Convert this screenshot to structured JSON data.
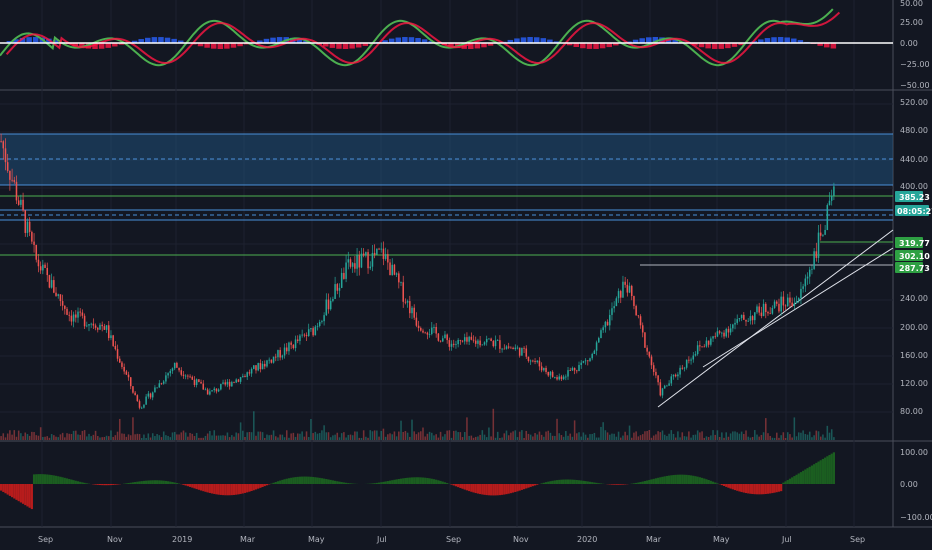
{
  "colors": {
    "background": "#131722",
    "grid": "#1e2230",
    "pane_border": "#4a4e5a",
    "up": "#26a69a",
    "down": "#ef5350",
    "zone_fill": "#1f4e79",
    "zone_line": "#4a90d9",
    "hline_green": "#4caf50",
    "trend_white": "#e0e3eb",
    "wt_green": "#4caf50",
    "wt_red": "#ff1744",
    "wt_blue": "#2962ff",
    "macd_green": "#1b5e20",
    "macd_red": "#b71c1c",
    "tag_green": "#26a69a",
    "tag_bright_green": "#2ea043"
  },
  "price_axis": {
    "ticks": [
      "520.00",
      "480.00",
      "440.00",
      "400.00",
      "240.00",
      "200.00",
      "160.00",
      "120.00",
      "80.00"
    ]
  },
  "top_axis": {
    "ticks": [
      "50.00",
      "25.00",
      "0.00",
      "−25.00",
      "−50.00"
    ]
  },
  "bottom_axis": {
    "ticks": [
      "100.00",
      "0.00",
      "−100.00"
    ]
  },
  "date_axis": {
    "ticks": [
      "Sep",
      "Nov",
      "2019",
      "Mar",
      "May",
      "Jul",
      "Sep",
      "Nov",
      "2020",
      "Mar",
      "May",
      "Jul",
      "Sep"
    ]
  },
  "price_tags": [
    {
      "label": "385.23",
      "color": "#26a69a"
    },
    {
      "label": "08:05:27",
      "color": "#26a69a"
    },
    {
      "label": "319.77",
      "color": "#2ea043"
    },
    {
      "label": "302.10",
      "color": "#2ea043"
    },
    {
      "label": "287.73",
      "color": "#2ea043"
    }
  ],
  "chart_data": {
    "type": "candlestick",
    "title": "",
    "ylabel": "",
    "ylim": [
      50,
      530
    ],
    "close_series_approx": [
      [
        "Aug 2018",
        470
      ],
      [
        "Sep 2018",
        300
      ],
      [
        "Oct 2018",
        220
      ],
      [
        "Nov 2018",
        205
      ],
      [
        "Dec 2018",
        90
      ],
      [
        "Jan 2019",
        150
      ],
      [
        "Feb 2019",
        110
      ],
      [
        "Mar 2019",
        135
      ],
      [
        "Apr 2019",
        165
      ],
      [
        "May 2019",
        200
      ],
      [
        "Jun 2019",
        290
      ],
      [
        "Jul 2019",
        310
      ],
      [
        "Aug 2019",
        210
      ],
      [
        "Sep 2019",
        180
      ],
      [
        "Oct 2019",
        185
      ],
      [
        "Nov 2019",
        170
      ],
      [
        "Dec 2019",
        130
      ],
      [
        "Jan 2020",
        160
      ],
      [
        "Feb 2020",
        270
      ],
      [
        "Mar 2020",
        110
      ],
      [
        "Apr 2020",
        170
      ],
      [
        "May 2020",
        205
      ],
      [
        "Jun 2020",
        230
      ],
      [
        "Jul 2020",
        245
      ],
      [
        "Aug 2020",
        390
      ]
    ],
    "zone": {
      "low": 395,
      "high": 470
    },
    "horizontal_levels": [
      385.23,
      360,
      319.77,
      302.1,
      287.73
    ]
  }
}
